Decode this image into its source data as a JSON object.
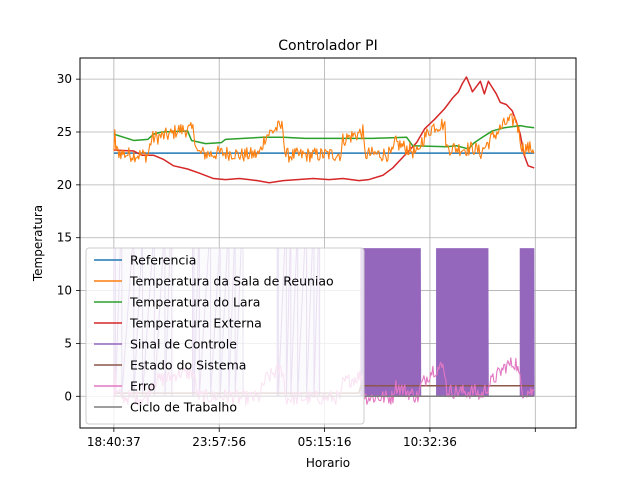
{
  "chart_data": {
    "type": "line",
    "title": "Controlador PI",
    "xlabel": "Horario",
    "ylabel": "Temperatura",
    "x_tick_labels": [
      "18:40:37",
      "23:57:56",
      "05:15:16",
      "10:32:36",
      ""
    ],
    "x_range_hours": [
      -1.7,
      23.2
    ],
    "x_tick_positions_hours": [
      0,
      5.289,
      10.578,
      15.867,
      21.156
    ],
    "ylim": [
      -3,
      32
    ],
    "y_ticks": [
      0,
      5,
      10,
      15,
      20,
      25,
      30
    ],
    "grid": true,
    "legend_position": "lower-left",
    "series": [
      {
        "name": "Referencia",
        "color": "#1f77b4",
        "kind": "line",
        "x": [
          0,
          21.1
        ],
        "y": [
          23,
          23
        ]
      },
      {
        "name": "Temperatura da Sala de Reuniao",
        "color": "#ff7f0e",
        "kind": "noisy",
        "noise": 0.7,
        "x": [
          0,
          0.05,
          0.1,
          0.6,
          1.7,
          1.9,
          2.9,
          3.2,
          3.5,
          4.0,
          4.2,
          5.0,
          5.1,
          6.1,
          6.2,
          7.3,
          7.6,
          8.2,
          8.5,
          8.6,
          9.1,
          11.4,
          11.5,
          12.5,
          12.6,
          14.0,
          14.1,
          15.3,
          15.4,
          16.0,
          16.6,
          16.7,
          17.8,
          18.1,
          18.4,
          19.0,
          19.7,
          20.2,
          20.5,
          21.1
        ],
        "y": [
          22.8,
          25.5,
          23.2,
          22.9,
          22.8,
          24.4,
          24.8,
          25.2,
          25.2,
          25.2,
          23.0,
          22.9,
          23.0,
          23.0,
          22.8,
          22.9,
          24.6,
          25.4,
          25.5,
          22.8,
          22.8,
          22.9,
          24.3,
          25.0,
          22.9,
          22.9,
          24.0,
          22.9,
          24.0,
          25.5,
          25.8,
          23.5,
          23.4,
          23.5,
          23.0,
          24.5,
          25.9,
          26.2,
          23.5,
          23.4
        ]
      },
      {
        "name": "Temperatura do Lara",
        "color": "#2ca02c",
        "kind": "line",
        "x": [
          0,
          1,
          1.7,
          2.0,
          2.4,
          3.7,
          3.9,
          4.6,
          5.4,
          5.6,
          6.5,
          7.5,
          8.5,
          9.6,
          12.0,
          13.0,
          14.7,
          15.0,
          16.7,
          17.2,
          17.8,
          18.1,
          18.5,
          19.0,
          19.6,
          20.4,
          20.7,
          21.1
        ],
        "y": [
          24.8,
          24.2,
          24.3,
          24.8,
          25.0,
          25.1,
          24.2,
          23.9,
          24.0,
          24.3,
          24.4,
          24.5,
          24.5,
          24.4,
          24.4,
          24.4,
          24.5,
          23.7,
          23.6,
          23.7,
          23.4,
          24.0,
          24.5,
          25.1,
          25.4,
          25.6,
          25.5,
          25.4
        ]
      },
      {
        "name": "Temperatura Externa",
        "color": "#d62728",
        "kind": "line",
        "x": [
          0,
          1.0,
          1.4,
          2.0,
          2.5,
          3.0,
          3.7,
          4.3,
          5.0,
          5.6,
          6.3,
          6.8,
          7.2,
          7.8,
          8.5,
          9.2,
          10.0,
          10.8,
          11.5,
          12.3,
          12.8,
          13.5,
          14.0,
          14.5,
          15.2,
          15.6,
          16.1,
          16.6,
          17.0,
          17.3,
          17.5,
          17.7,
          17.9,
          18.0,
          18.2,
          18.4,
          18.6,
          18.8,
          19.0,
          19.2,
          19.4,
          19.7,
          20.0,
          20.2,
          20.4,
          20.6,
          20.8,
          21.1
        ],
        "y": [
          23.3,
          23.2,
          22.8,
          22.8,
          22.4,
          21.8,
          21.5,
          21.1,
          20.6,
          20.5,
          20.6,
          20.5,
          20.4,
          20.2,
          20.4,
          20.5,
          20.6,
          20.5,
          20.6,
          20.4,
          20.5,
          20.9,
          21.6,
          22.6,
          24.0,
          25.3,
          26.2,
          27.2,
          28.2,
          28.8,
          29.6,
          30.2,
          29.3,
          28.8,
          29.3,
          29.8,
          28.6,
          29.8,
          29.2,
          28.6,
          27.8,
          27.6,
          27.0,
          26.0,
          24.8,
          22.8,
          21.8,
          21.6
        ]
      },
      {
        "name": "Sinal de Controle",
        "color": "#9467bd",
        "kind": "switching",
        "low": 0,
        "high": 14,
        "x_bursts": [
          [
            0,
            3.0
          ],
          [
            3.95,
            6.4
          ],
          [
            8.2,
            10.4
          ],
          [
            12.4,
            15.4
          ],
          [
            16.2,
            18.8
          ],
          [
            20.4,
            21.1
          ]
        ],
        "x_dense": [
          [
            12.4,
            15.4
          ],
          [
            16.2,
            18.8
          ],
          [
            20.4,
            21.1
          ]
        ]
      },
      {
        "name": "Estado do Sistema",
        "color": "#8c564b",
        "kind": "line",
        "x": [
          0,
          12.3,
          12.4,
          21.1
        ],
        "y": [
          0.3,
          0.3,
          1.0,
          1.0
        ]
      },
      {
        "name": "Erro",
        "color": "#e377c2",
        "kind": "noisy",
        "noise": 0.7,
        "x": [
          0,
          0.05,
          0.1,
          0.6,
          1.7,
          1.9,
          2.9,
          3.2,
          3.5,
          4.0,
          4.2,
          5.0,
          5.1,
          6.1,
          6.2,
          7.3,
          7.6,
          8.2,
          8.5,
          8.6,
          9.1,
          11.4,
          11.5,
          12.5,
          12.6,
          14.0,
          14.1,
          15.3,
          15.4,
          16.0,
          16.6,
          16.7,
          17.8,
          18.1,
          18.4,
          19.0,
          19.7,
          20.2,
          20.5,
          21.1
        ],
        "y": [
          -0.2,
          2.5,
          0.2,
          -0.1,
          -0.2,
          1.4,
          1.8,
          2.2,
          2.2,
          2.2,
          0.0,
          -0.1,
          0.0,
          0.0,
          -0.2,
          -0.1,
          1.6,
          2.4,
          2.5,
          -0.2,
          -0.2,
          -0.1,
          1.3,
          2.0,
          -0.1,
          -0.1,
          1.0,
          -0.1,
          1.0,
          2.5,
          2.8,
          0.5,
          0.4,
          0.5,
          0.0,
          1.5,
          2.9,
          3.2,
          0.5,
          0.4
        ]
      },
      {
        "name": "Ciclo de Trabalho",
        "color": "#7f7f7f",
        "kind": "line",
        "x": [
          0,
          21.1
        ],
        "y": [
          0,
          0
        ]
      }
    ]
  }
}
